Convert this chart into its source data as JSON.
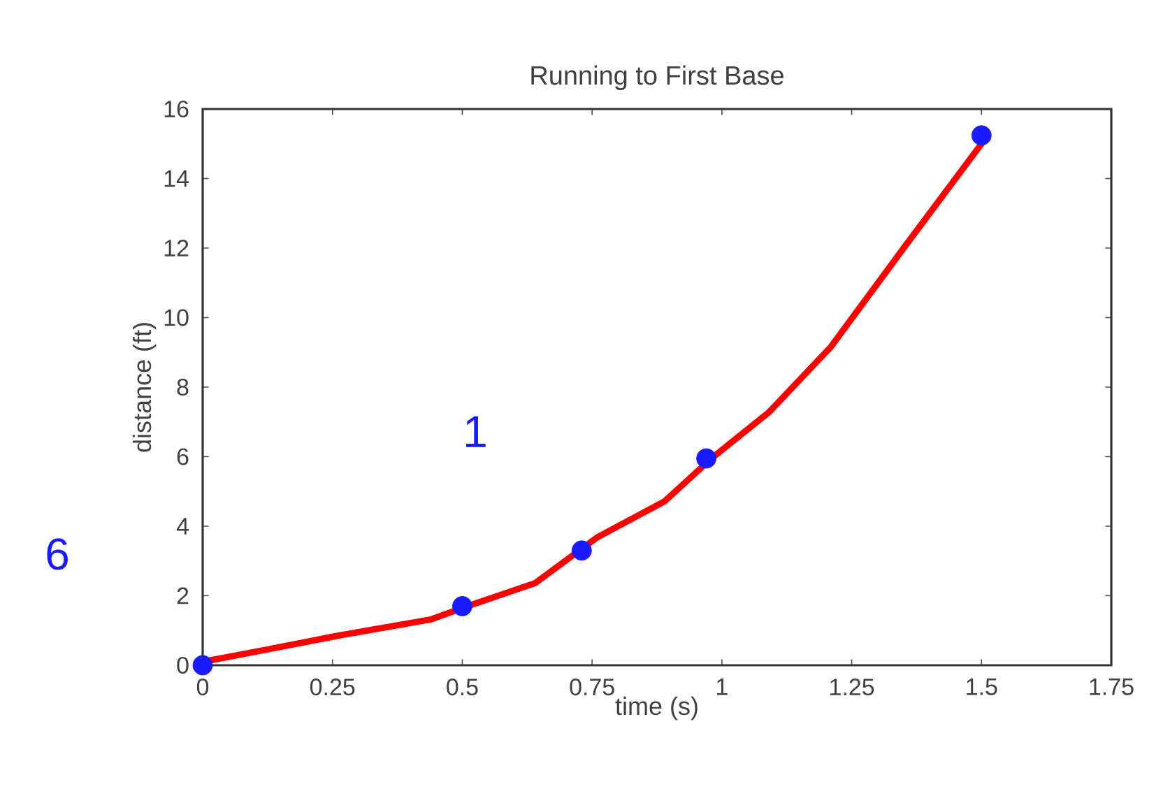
{
  "chart_data": {
    "type": "line",
    "title": "Running to First Base",
    "xlabel": "time (s)",
    "ylabel": "distance (ft)",
    "xlim": [
      0,
      1.75
    ],
    "xticks": [
      0,
      0.25,
      0.5,
      0.75,
      1,
      1.25,
      1.5,
      1.75
    ],
    "ylim": [
      0,
      16
    ],
    "yticks": [
      0,
      2,
      4,
      6,
      8,
      10,
      12,
      14,
      16
    ],
    "series": [
      {
        "color": "#ff0000",
        "marker": "none",
        "x": [
          0,
          0.13,
          0.26,
          0.44,
          0.51,
          0.64,
          0.76,
          0.89,
          0.98,
          1.09,
          1.21,
          1.35,
          1.5
        ],
        "values": [
          0.1,
          0.47,
          0.85,
          1.32,
          1.7,
          2.36,
          3.68,
          4.72,
          5.95,
          7.27,
          9.16,
          12.0,
          15.0
        ]
      },
      {
        "type": "scatter",
        "color": "#1a1aff",
        "marker": "circle",
        "x": [
          0,
          0.5,
          0.73,
          0.97,
          1.5
        ],
        "values": [
          0,
          1.7,
          3.3,
          5.95,
          15.24
        ]
      }
    ],
    "annotations": [
      "1",
      "6"
    ]
  }
}
